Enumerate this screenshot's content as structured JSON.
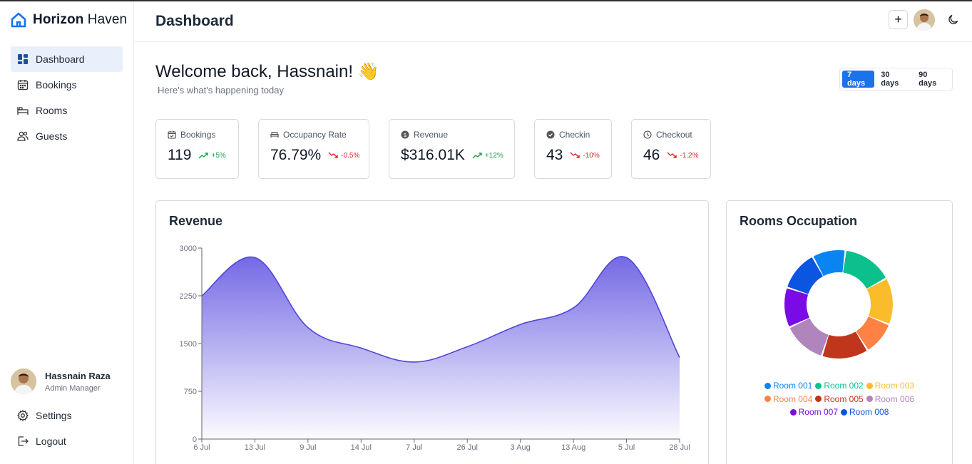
{
  "brand": {
    "name_bold": "Horizon",
    "name_rest": " Haven",
    "color": "#1a73e8"
  },
  "sidebar": {
    "items": [
      {
        "label": "Dashboard",
        "icon": "dashboard-icon",
        "active": true
      },
      {
        "label": "Bookings",
        "icon": "calendar-icon",
        "active": false
      },
      {
        "label": "Rooms",
        "icon": "bed-icon",
        "active": false
      },
      {
        "label": "Guests",
        "icon": "users-icon",
        "active": false
      }
    ],
    "user": {
      "name": "Hassnain Raza",
      "role": "Admin Manager"
    },
    "bottom": [
      {
        "label": "Settings",
        "icon": "gear-icon"
      },
      {
        "label": "Logout",
        "icon": "logout-icon"
      }
    ]
  },
  "header": {
    "title": "Dashboard",
    "add_label": "+"
  },
  "welcome": {
    "title": "Welcome back, Hassnain! 👋",
    "subtitle": "Here's what's happening today"
  },
  "range": {
    "options": [
      "7 days",
      "30 days",
      "90 days"
    ],
    "selected": "7 days"
  },
  "stats": [
    {
      "label": "Bookings",
      "value": "119",
      "delta": "+5%",
      "trend": "up",
      "icon": "calendar-check-icon"
    },
    {
      "label": "Occupancy Rate",
      "value": "76.79%",
      "delta": "-0.5%",
      "trend": "down",
      "icon": "bed-icon"
    },
    {
      "label": "Revenue",
      "value": "$316.01K",
      "delta": "+12%",
      "trend": "up",
      "icon": "dollar-icon"
    },
    {
      "label": "Checkin",
      "value": "43",
      "delta": "-10%",
      "trend": "down",
      "icon": "check-circle-icon"
    },
    {
      "label": "Checkout",
      "value": "46",
      "delta": "-1.2%",
      "trend": "down",
      "icon": "clock-icon"
    }
  ],
  "revenue": {
    "title": "Revenue"
  },
  "occupation": {
    "title": "Rooms Occupation"
  },
  "chart_data": [
    {
      "type": "area",
      "title": "Revenue",
      "x": [
        "6 Jul",
        "13 Jul",
        "9 Jul",
        "14 Jul",
        "7 Jul",
        "26 Jul",
        "3 Aug",
        "13 Aug",
        "5 Jul",
        "28 Jul"
      ],
      "series": [
        {
          "values": [
            2250,
            2850,
            1750,
            1430,
            1210,
            1450,
            1800,
            2060,
            2850,
            1280
          ]
        }
      ],
      "yticks": [
        0,
        750,
        1500,
        2250,
        3000
      ],
      "ylim": [
        0,
        3000
      ],
      "color": "#5b4fe0"
    },
    {
      "type": "pie",
      "title": "Rooms Occupation",
      "labels": [
        "Room 001",
        "Room 002",
        "Room 003",
        "Room 004",
        "Room 005",
        "Room 006",
        "Room 007",
        "Room 008"
      ],
      "values": [
        10,
        15,
        14,
        10,
        14,
        13,
        12,
        12
      ],
      "colors": [
        "#0a84f0",
        "#0cc08e",
        "#fbbc2b",
        "#ff8244",
        "#c0361d",
        "#b085bd",
        "#7a0ae6",
        "#0b55e0"
      ]
    }
  ]
}
